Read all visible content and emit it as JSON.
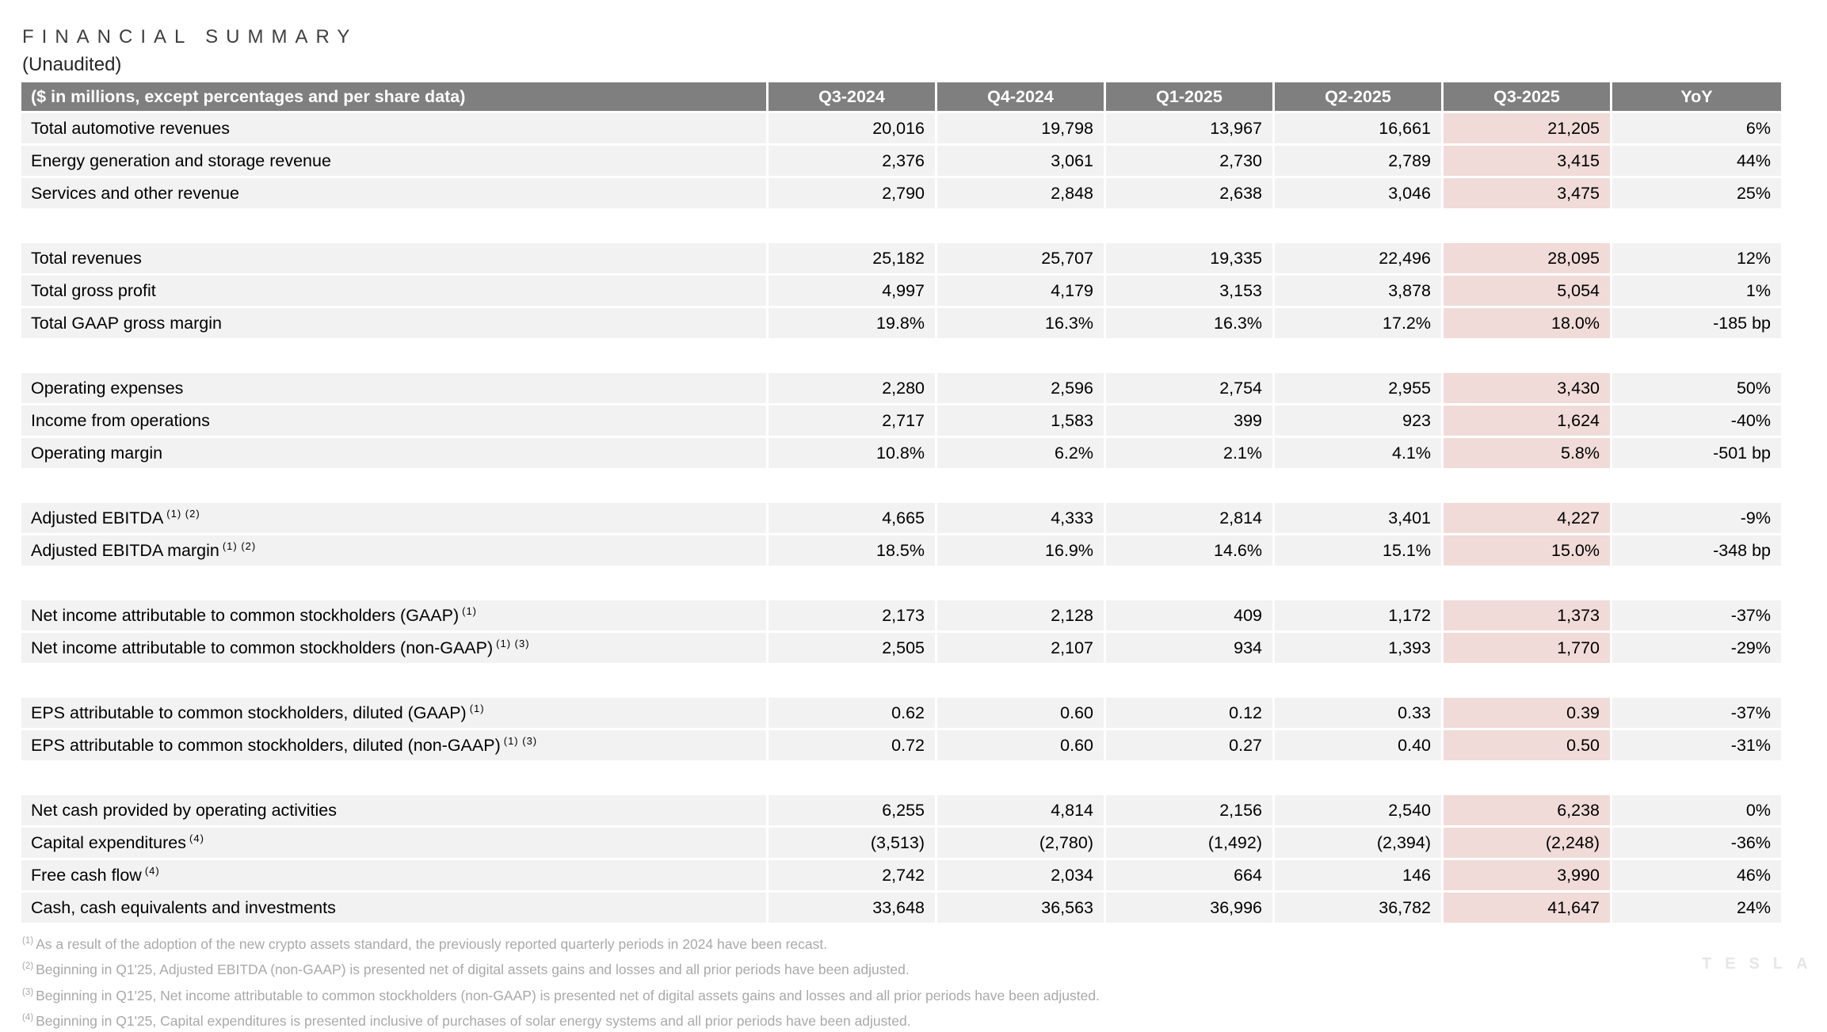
{
  "slide": {
    "title": "FINANCIAL SUMMARY",
    "subtitle": "(Unaudited)",
    "watermark": "TESLA"
  },
  "table": {
    "header_label": "($ in millions, except percentages and per share data)",
    "columns": [
      "Q3-2024",
      "Q4-2024",
      "Q1-2025",
      "Q2-2025",
      "Q3-2025",
      "YoY"
    ],
    "highlight_column": "Q3-2025",
    "rows": [
      {
        "label": "Total automotive revenues",
        "sup": "",
        "values": [
          "20,016",
          "19,798",
          "13,967",
          "16,661",
          "21,205",
          "6%"
        ]
      },
      {
        "label": "Energy generation and storage revenue",
        "sup": "",
        "values": [
          "2,376",
          "3,061",
          "2,730",
          "2,789",
          "3,415",
          "44%"
        ]
      },
      {
        "label": "Services and other revenue",
        "sup": "",
        "values": [
          "2,790",
          "2,848",
          "2,638",
          "3,046",
          "3,475",
          "25%"
        ]
      },
      {
        "label": "Total revenues",
        "sup": "",
        "values": [
          "25,182",
          "25,707",
          "19,335",
          "22,496",
          "28,095",
          "12%"
        ]
      },
      {
        "label": "Total gross profit",
        "sup": "",
        "values": [
          "4,997",
          "4,179",
          "3,153",
          "3,878",
          "5,054",
          "1%"
        ]
      },
      {
        "label": "Total GAAP gross margin",
        "sup": "",
        "values": [
          "19.8%",
          "16.3%",
          "16.3%",
          "17.2%",
          "18.0%",
          "-185 bp"
        ]
      },
      {
        "label": "Operating expenses",
        "sup": "",
        "values": [
          "2,280",
          "2,596",
          "2,754",
          "2,955",
          "3,430",
          "50%"
        ]
      },
      {
        "label": "Income from operations",
        "sup": "",
        "values": [
          "2,717",
          "1,583",
          "399",
          "923",
          "1,624",
          "-40%"
        ]
      },
      {
        "label": "Operating margin",
        "sup": "",
        "values": [
          "10.8%",
          "6.2%",
          "2.1%",
          "4.1%",
          "5.8%",
          "-501 bp"
        ]
      },
      {
        "label": "Adjusted EBITDA",
        "sup": "(1) (2)",
        "values": [
          "4,665",
          "4,333",
          "2,814",
          "3,401",
          "4,227",
          "-9%"
        ]
      },
      {
        "label": "Adjusted EBITDA margin",
        "sup": "(1) (2)",
        "values": [
          "18.5%",
          "16.9%",
          "14.6%",
          "15.1%",
          "15.0%",
          "-348 bp"
        ]
      },
      {
        "label": "Net income attributable to common stockholders (GAAP)",
        "sup": "(1)",
        "values": [
          "2,173",
          "2,128",
          "409",
          "1,172",
          "1,373",
          "-37%"
        ]
      },
      {
        "label": "Net income attributable to common stockholders (non-GAAP)",
        "sup": "(1) (3)",
        "values": [
          "2,505",
          "2,107",
          "934",
          "1,393",
          "1,770",
          "-29%"
        ]
      },
      {
        "label": "EPS attributable to common stockholders, diluted (GAAP)",
        "sup": "(1)",
        "values": [
          "0.62",
          "0.60",
          "0.12",
          "0.33",
          "0.39",
          "-37%"
        ]
      },
      {
        "label": "EPS attributable to common stockholders, diluted (non-GAAP)",
        "sup": "(1) (3)",
        "values": [
          "0.72",
          "0.60",
          "0.27",
          "0.40",
          "0.50",
          "-31%"
        ]
      },
      {
        "label": "Net cash provided by operating activities",
        "sup": "",
        "values": [
          "6,255",
          "4,814",
          "2,156",
          "2,540",
          "6,238",
          "0%"
        ]
      },
      {
        "label": "Capital expenditures",
        "sup": "(4)",
        "values": [
          "(3,513)",
          "(2,780)",
          "(1,492)",
          "(2,394)",
          "(2,248)",
          "-36%"
        ]
      },
      {
        "label": "Free cash flow",
        "sup": "(4)",
        "values": [
          "2,742",
          "2,034",
          "664",
          "146",
          "3,990",
          "46%"
        ]
      },
      {
        "label": "Cash, cash equivalents and investments",
        "sup": "",
        "values": [
          "33,648",
          "36,563",
          "36,996",
          "36,782",
          "41,647",
          "24%"
        ]
      }
    ]
  },
  "footnotes": [
    {
      "marker": "(1)",
      "text": "As a result of the adoption of the new crypto assets standard, the previously reported quarterly periods in 2024 have been recast."
    },
    {
      "marker": "(2)",
      "text": "Beginning in Q1'25, Adjusted EBITDA (non-GAAP) is presented net of digital assets gains and losses and all prior periods have been adjusted."
    },
    {
      "marker": "(3)",
      "text": "Beginning in Q1'25, Net income attributable to common stockholders (non-GAAP) is presented net of digital assets gains and losses and all prior periods have been adjusted."
    },
    {
      "marker": "(4)",
      "text": "Beginning in Q1'25, Capital expenditures is presented inclusive of purchases of solar energy systems and all prior periods have been adjusted."
    }
  ],
  "colors": {
    "header-bg": "#7f7f7f",
    "row-bg": "#f2f2f2",
    "highlight-bg": "#f0dbd8",
    "footnote-text": "#a9a9a9",
    "title-text": "#3f3f3f",
    "watermark-text": "#e6e6e6"
  }
}
